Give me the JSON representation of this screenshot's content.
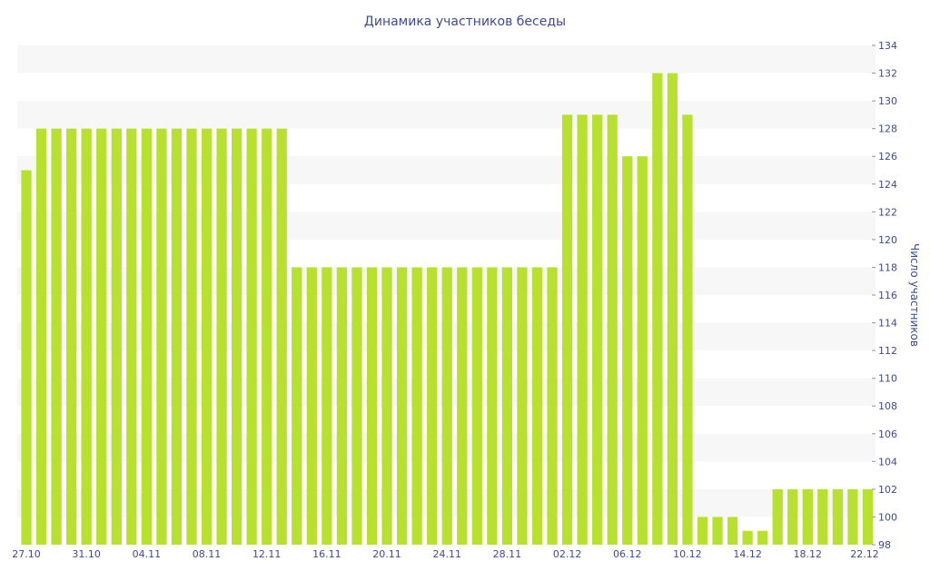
{
  "chart_data": {
    "type": "bar",
    "title": "Динамика участников беседы",
    "xlabel": "",
    "ylabel": "Число участников",
    "ylim": [
      98,
      134
    ],
    "yticks": [
      98,
      100,
      102,
      104,
      106,
      108,
      110,
      112,
      114,
      116,
      118,
      120,
      122,
      124,
      126,
      128,
      130,
      132,
      134
    ],
    "grid": "horizontal alternating bands",
    "legend": "none",
    "bar_color": "#b8e02e",
    "band_color": "#f7f7f7",
    "text_color": "#3e4a93",
    "categories": [
      "27.10",
      "28.10",
      "29.10",
      "30.10",
      "31.10",
      "01.11",
      "02.11",
      "03.11",
      "04.11",
      "05.11",
      "06.11",
      "07.11",
      "08.11",
      "09.11",
      "10.11",
      "11.11",
      "12.11",
      "13.11",
      "14.11",
      "15.11",
      "16.11",
      "17.11",
      "18.11",
      "19.11",
      "20.11",
      "21.11",
      "22.11",
      "23.11",
      "24.11",
      "25.11",
      "26.11",
      "27.11",
      "28.11",
      "29.11",
      "30.11",
      "01.12",
      "02.12",
      "03.12",
      "04.12",
      "05.12",
      "06.12",
      "07.12",
      "08.12",
      "09.12",
      "10.12",
      "11.12",
      "12.12",
      "13.12",
      "14.12",
      "15.12",
      "16.12",
      "17.12",
      "18.12",
      "19.12",
      "20.12",
      "21.12",
      "22.12"
    ],
    "values": [
      125,
      128,
      128,
      128,
      128,
      128,
      128,
      128,
      128,
      128,
      128,
      128,
      128,
      128,
      128,
      128,
      128,
      128,
      118,
      118,
      118,
      118,
      118,
      118,
      118,
      118,
      118,
      118,
      118,
      118,
      118,
      118,
      118,
      118,
      118,
      118,
      129,
      129,
      129,
      129,
      126,
      126,
      132,
      132,
      129,
      100,
      100,
      100,
      99,
      99,
      102,
      102,
      102,
      102,
      102,
      102,
      102
    ],
    "xtick_labels": [
      "27.10",
      "31.10",
      "04.11",
      "08.11",
      "12.11",
      "16.11",
      "20.11",
      "24.11",
      "28.11",
      "02.12",
      "06.12",
      "10.12",
      "14.12",
      "18.12",
      "22.12"
    ]
  }
}
